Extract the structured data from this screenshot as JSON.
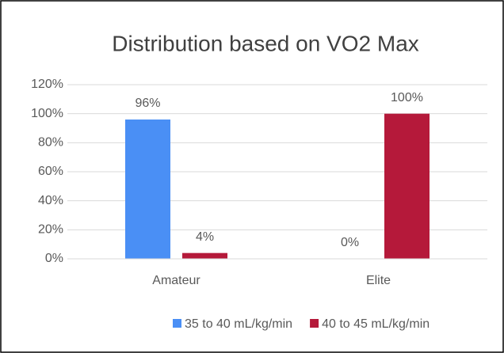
{
  "chart_data": {
    "type": "bar",
    "title": "Distribution based on VO2 Max",
    "categories": [
      "Amateur",
      "Elite"
    ],
    "series": [
      {
        "name": "35 to 40 mL/kg/min",
        "color": "#4a8ff5",
        "values": [
          96,
          0
        ],
        "value_labels": [
          "96%",
          "0%"
        ]
      },
      {
        "name": "40 to 45 mL/kg/min",
        "color": "#b5193a",
        "values": [
          4,
          100
        ],
        "value_labels": [
          "4%",
          "100%"
        ]
      }
    ],
    "ylim": [
      0,
      120
    ],
    "yticks": [
      {
        "value": 0,
        "label": "0%"
      },
      {
        "value": 20,
        "label": "20%"
      },
      {
        "value": 40,
        "label": "40%"
      },
      {
        "value": 60,
        "label": "60%"
      },
      {
        "value": 80,
        "label": "80%"
      },
      {
        "value": 100,
        "label": "100%"
      },
      {
        "value": 120,
        "label": "120%"
      }
    ],
    "grid": true,
    "legend": "bottom"
  }
}
